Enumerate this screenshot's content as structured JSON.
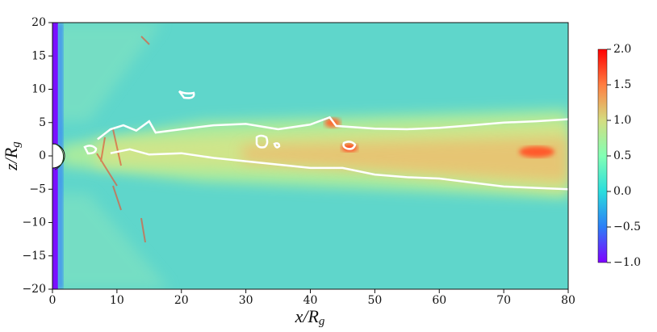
{
  "chart_data": {
    "type": "heatmap",
    "xlabel": "x/R",
    "xlabel_sub": "g",
    "ylabel": "z/R",
    "ylabel_sub": "g",
    "xlim": [
      0,
      80
    ],
    "xticks": [
      0,
      10,
      20,
      30,
      40,
      50,
      60,
      70,
      80
    ],
    "ylim": [
      -20,
      20
    ],
    "yticks": [
      {
        "value": -20,
        "label": "−20"
      },
      {
        "value": -15,
        "label": "−15"
      },
      {
        "value": -10,
        "label": "−10"
      },
      {
        "value": -5,
        "label": "−5"
      },
      0,
      5,
      10,
      15,
      20
    ],
    "colorbar": {
      "lim": [
        -1,
        2
      ],
      "ticks": [
        {
          "value": -1,
          "label": "−1.0"
        },
        {
          "value": -0.5,
          "label": "−0.5"
        },
        {
          "value": 0,
          "label": "0.0"
        },
        0.5,
        {
          "value": 1,
          "label": "1.0"
        },
        1.5,
        {
          "value": 2,
          "label": "2.0"
        }
      ],
      "colors": [
        "#7f00ff",
        "#2c7ef7",
        "#2adddd",
        "#82ffb4",
        "#d4dd80",
        "#ff7e41",
        "#ff0000"
      ]
    }
  }
}
